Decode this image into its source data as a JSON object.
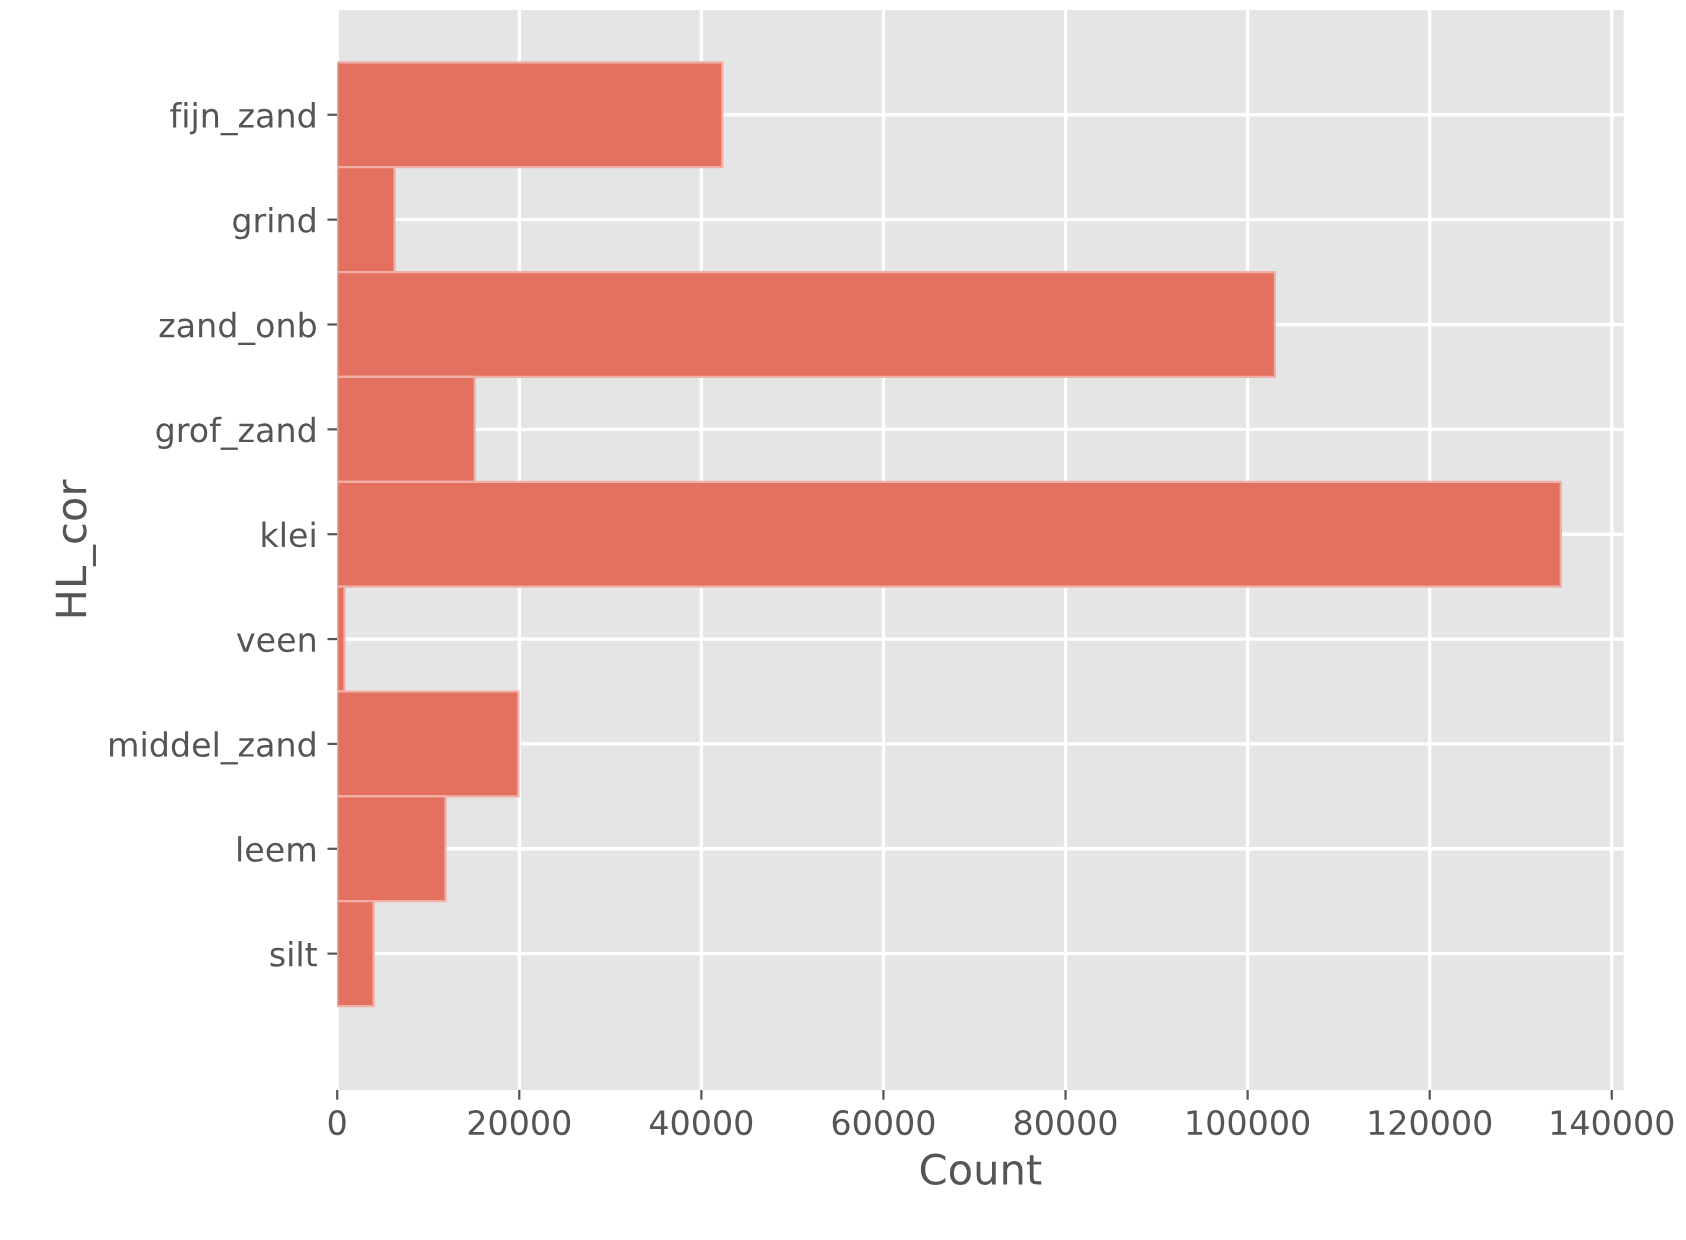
{
  "chart_data": {
    "type": "bar",
    "orientation": "horizontal",
    "xlabel": "Count",
    "ylabel": "HL_cor",
    "categories": [
      "fijn_zand",
      "grind",
      "zand_onb",
      "grof_zand",
      "klei",
      "veen",
      "middel_zand",
      "leem",
      "silt"
    ],
    "values": [
      42300,
      6300,
      103000,
      15100,
      134400,
      800,
      19900,
      11900,
      4000
    ],
    "color": "#e47060",
    "xlim": [
      0,
      141300
    ],
    "xticks": [
      0,
      20000,
      40000,
      60000,
      80000,
      100000,
      120000,
      140000
    ],
    "grid": true,
    "legend": false
  }
}
